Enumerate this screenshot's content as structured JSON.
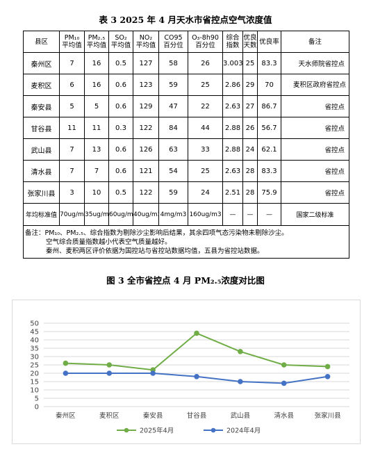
{
  "table": {
    "title": "表 3    2025 年 4 月天水市省控点空气浓度值",
    "headers": {
      "county": "县区",
      "pm10_name": "PM₁₀",
      "pm10_sub": "平均值",
      "pm25_name": "PM₂.₅",
      "pm25_sub": "平均值",
      "so2_name": "SO₂",
      "so2_sub": "平均值",
      "no2_name": "NO₂",
      "no2_sub": "平均值",
      "co_name": "CO95",
      "co_sub": "百分位",
      "o3_name": "O₃-8h90",
      "o3_sub": "百分位",
      "index_name": "综合",
      "index_sub": "指数",
      "good_name": "优良",
      "good_sub": "天数",
      "rate": "优良率",
      "note": "备注"
    },
    "rows": [
      {
        "county": "秦州区",
        "pm10": "7",
        "pm25": "16",
        "so2": "0.5",
        "no2": "127",
        "co": "58",
        "o3": "26",
        "index": "3.003",
        "days": "25",
        "rate": "83.3",
        "note": "天水师院省控点"
      },
      {
        "county": "麦积区",
        "pm10": "6",
        "pm25": "16",
        "so2": "0.6",
        "no2": "123",
        "co": "59",
        "o3": "25",
        "index": "2.86",
        "days": "29",
        "rate": "70",
        "note": "麦积区政府省控点"
      },
      {
        "county": "秦安县",
        "pm10": "5",
        "pm25": "5",
        "so2": "0.6",
        "no2": "129",
        "co": "47",
        "o3": "22",
        "index": "2.63",
        "days": "27",
        "rate": "86.7",
        "note": "省控点"
      },
      {
        "county": "甘谷县",
        "pm10": "11",
        "pm25": "11",
        "so2": "0.3",
        "no2": "122",
        "co": "84",
        "o3": "44",
        "index": "2.88",
        "days": "26",
        "rate": "56.7",
        "note": "省控点"
      },
      {
        "county": "武山县",
        "pm10": "7",
        "pm25": "13",
        "so2": "0.6",
        "no2": "126",
        "co": "63",
        "o3": "33",
        "index": "2.88",
        "days": "24",
        "rate": "62.1",
        "note": "省控点"
      },
      {
        "county": "清水县",
        "pm10": "7",
        "pm25": "7",
        "so2": "0.6",
        "no2": "121",
        "co": "54",
        "o3": "25",
        "index": "2.63",
        "days": "28",
        "rate": "83.3",
        "note": "省控点"
      },
      {
        "county": "张家川县",
        "pm10": "3",
        "pm25": "10",
        "so2": "0.5",
        "no2": "122",
        "co": "59",
        "o3": "24",
        "index": "2.51",
        "days": "28",
        "rate": "75.9",
        "note": "省控点"
      }
    ],
    "standard": {
      "label": "年均标准值",
      "pm10": "70ug/m3",
      "pm25": "35ug/m3",
      "so2": "60ug/m3",
      "no2": "40ug/m3",
      "co": "4mg/m3",
      "o3": "160ug/m3",
      "index": "—",
      "days": "—",
      "rate": "—",
      "note": "国家二级标准"
    },
    "notes": [
      "备注：PM₁₀、PM₂.₅、综合指数为剔除沙尘影响后结果，其余四项气态污染物未剔除沙尘。",
      "空气综合质量指数越小代表空气质量越好。",
      "秦州、麦积两区评价依据为国控站与省控站数据均值，五县为省控站数据。"
    ]
  },
  "figure_title": "图 3    全市省控点 4 月 PM₂.₅浓度对比图",
  "chart_data": {
    "type": "line",
    "title": "",
    "categories": [
      "秦州区",
      "麦积区",
      "秦安县",
      "甘谷县",
      "武山县",
      "清水县",
      "张家川县"
    ],
    "series": [
      {
        "name": "2025年4月",
        "color": "#70ad47",
        "values": [
          26,
          25,
          22,
          44,
          33,
          25,
          24
        ]
      },
      {
        "name": "2024年4月",
        "color": "#4472c4",
        "values": [
          20,
          20,
          20,
          18,
          15,
          14,
          18
        ]
      }
    ],
    "ylim": [
      0,
      50
    ],
    "yticks": [
      0,
      5,
      10,
      15,
      20,
      25,
      30,
      35,
      40,
      45,
      50
    ],
    "grid": true,
    "legend_position": "bottom"
  }
}
